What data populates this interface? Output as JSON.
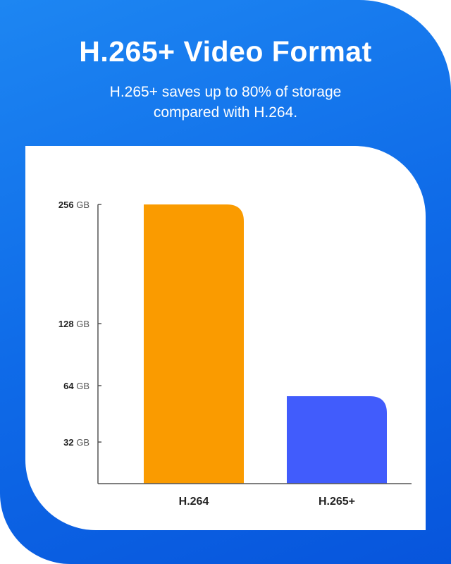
{
  "header": {
    "title": "H.265+ Video Format",
    "subtitle": "H.265+ saves up to 80% of storage compared with H.264."
  },
  "colors": {
    "background": "#0f6be8",
    "h264": "#fa9b00",
    "h265plus": "#415cfc"
  },
  "chart_data": {
    "type": "bar",
    "categories": [
      "H.264",
      "H.265+"
    ],
    "values": [
      256,
      58
    ],
    "unit": "GB",
    "yticks": [
      {
        "value": 32,
        "num": "32",
        "unit": "GB"
      },
      {
        "value": 64,
        "num": "64",
        "unit": "GB"
      },
      {
        "value": 128,
        "num": "128",
        "unit": "GB"
      },
      {
        "value": 256,
        "num": "256",
        "unit": "GB"
      }
    ],
    "ylim": [
      0,
      256
    ],
    "grid": false,
    "legend": "none"
  }
}
